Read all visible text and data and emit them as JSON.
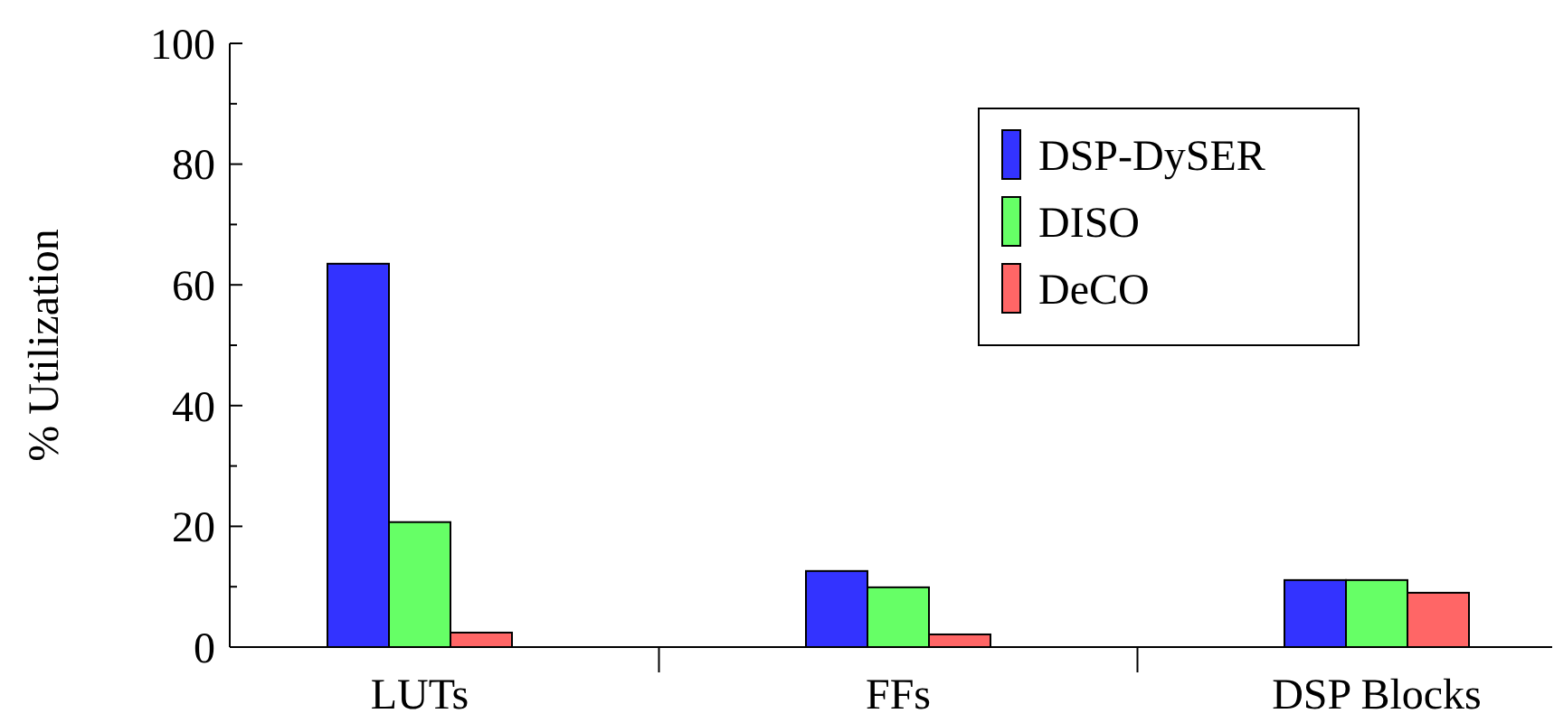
{
  "chart_data": {
    "type": "bar",
    "ylabel": "% Utilization",
    "categories": [
      "LUTs",
      "FFs",
      "DSP Blocks"
    ],
    "series": [
      {
        "name": "DSP-DySER",
        "color": "#3333ff",
        "values": [
          63.5,
          12.6,
          11.1
        ]
      },
      {
        "name": "DISO",
        "color": "#66ff66",
        "values": [
          20.7,
          9.9,
          11.1
        ]
      },
      {
        "name": "DeCO",
        "color": "#ff6666",
        "values": [
          2.4,
          2.1,
          9.0
        ]
      }
    ],
    "ylim": [
      0,
      100
    ],
    "yticks": [
      0,
      {
        "value": 10,
        "label": null
      },
      20,
      {
        "value": 30,
        "label": null
      },
      40,
      {
        "value": 50,
        "label": null
      },
      60,
      {
        "value": 70,
        "label": null
      },
      80,
      {
        "value": 90,
        "label": null
      },
      100
    ],
    "grid": false,
    "legend": "top right"
  }
}
